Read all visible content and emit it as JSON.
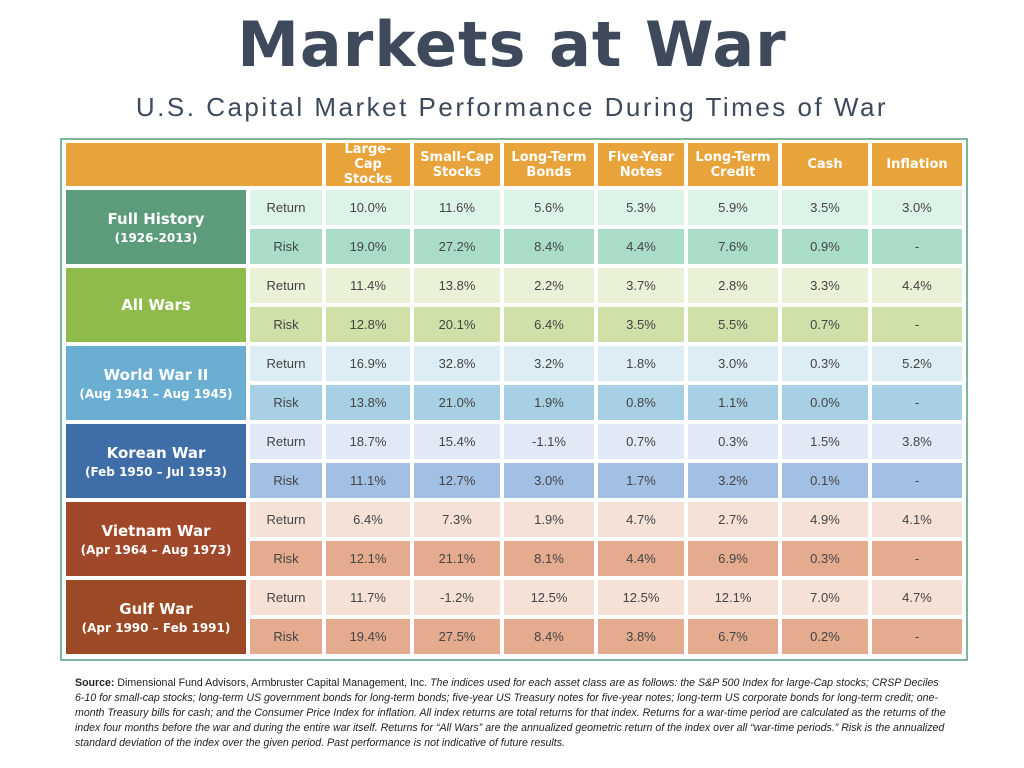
{
  "title": "Markets at War",
  "subtitle": "U.S. Capital Market Performance During Times of War",
  "table": {
    "columns": [
      "Large-Cap Stocks",
      "Small-Cap Stocks",
      "Long-Term Bonds",
      "Five-Year Notes",
      "Long-Term Credit",
      "Cash",
      "Inflation"
    ],
    "groups": [
      {
        "name": "Full History",
        "period": "(1926-2013)",
        "rows": [
          {
            "label": "Return",
            "values": [
              "10.0%",
              "11.6%",
              "5.6%",
              "5.3%",
              "5.9%",
              "3.5%",
              "3.0%"
            ]
          },
          {
            "label": "Risk",
            "values": [
              "19.0%",
              "27.2%",
              "8.4%",
              "4.4%",
              "7.6%",
              "0.9%",
              "-"
            ]
          }
        ]
      },
      {
        "name": "All Wars",
        "rows": [
          {
            "label": "Return",
            "values": [
              "11.4%",
              "13.8%",
              "2.2%",
              "3.7%",
              "2.8%",
              "3.3%",
              "4.4%"
            ]
          },
          {
            "label": "Risk",
            "values": [
              "12.8%",
              "20.1%",
              "6.4%",
              "3.5%",
              "5.5%",
              "0.7%",
              "-"
            ]
          }
        ]
      },
      {
        "name": "World War II",
        "period": "(Aug 1941 – Aug 1945)",
        "rows": [
          {
            "label": "Return",
            "values": [
              "16.9%",
              "32.8%",
              "3.2%",
              "1.8%",
              "3.0%",
              "0.3%",
              "5.2%"
            ]
          },
          {
            "label": "Risk",
            "values": [
              "13.8%",
              "21.0%",
              "1.9%",
              "0.8%",
              "1.1%",
              "0.0%",
              "-"
            ]
          }
        ]
      },
      {
        "name": "Korean War",
        "period": "(Feb 1950 – Jul 1953)",
        "rows": [
          {
            "label": "Return",
            "values": [
              "18.7%",
              "15.4%",
              "-1.1%",
              "0.7%",
              "0.3%",
              "1.5%",
              "3.8%"
            ]
          },
          {
            "label": "Risk",
            "values": [
              "11.1%",
              "12.7%",
              "3.0%",
              "1.7%",
              "3.2%",
              "0.1%",
              "-"
            ]
          }
        ]
      },
      {
        "name": "Vietnam War",
        "period": "(Apr 1964 – Aug 1973)",
        "rows": [
          {
            "label": "Return",
            "values": [
              "6.4%",
              "7.3%",
              "1.9%",
              "4.7%",
              "2.7%",
              "4.9%",
              "4.1%"
            ]
          },
          {
            "label": "Risk",
            "values": [
              "12.1%",
              "21.1%",
              "8.1%",
              "4.4%",
              "6.9%",
              "0.3%",
              "-"
            ]
          }
        ]
      },
      {
        "name": "Gulf War",
        "period": "(Apr 1990 – Feb 1991)",
        "rows": [
          {
            "label": "Return",
            "values": [
              "11.7%",
              "-1.2%",
              "12.5%",
              "12.5%",
              "12.1%",
              "7.0%",
              "4.7%"
            ]
          },
          {
            "label": "Risk",
            "values": [
              "19.4%",
              "27.5%",
              "8.4%",
              "3.8%",
              "6.7%",
              "0.2%",
              "-"
            ]
          }
        ]
      }
    ]
  },
  "source": {
    "label": "Source:",
    "text": "Dimensional Fund Advisors, Armbruster Capital Management, Inc.",
    "notes": "The indices used for each asset class are as follows: the S&P 500 Index for large-Cap stocks; CRSP Deciles 6-10 for small-cap stocks; long-term US government bonds for long-term bonds; five-year US Treasury notes for five-year notes; long-term US corporate bonds for long-term credit; one-month Treasury bills for cash; and the Consumer Price Index for inflation. All index returns are total returns for that index. Returns for a war-time period are calculated as the returns of the index four months before the war and during the entire war itself. Returns for “All Wars” are the annualized geometric return of the index over all “war-time periods.” Risk is the annualized standard deviation of the index over the given period. Past performance is not indicative of future results."
  }
}
